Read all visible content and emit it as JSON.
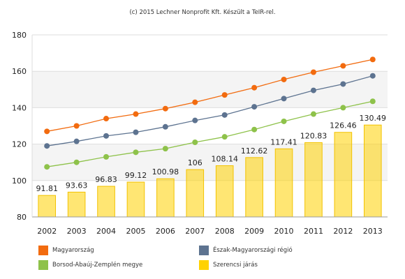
{
  "credit": "(c) 2015 Lechner Nonprofit Kft. Készült a TeIR-rel.",
  "chart_data": {
    "type": "bar",
    "categories": [
      "2002",
      "2003",
      "2004",
      "2005",
      "2006",
      "2007",
      "2008",
      "2009",
      "2010",
      "2011",
      "2012",
      "2013"
    ],
    "ylim": [
      80,
      180
    ],
    "yticks": [
      80,
      100,
      120,
      140,
      160,
      180
    ],
    "grid": true,
    "legend_position": "bottom",
    "bar_series": {
      "name": "Szerencsi járás",
      "color": "#ffd200",
      "values": [
        91.81,
        93.63,
        96.83,
        99.12,
        100.98,
        106,
        108.14,
        112.62,
        117.41,
        120.83,
        126.46,
        130.49
      ],
      "labels": [
        "91.81",
        "93.63",
        "96.83",
        "99.12",
        "100.98",
        "106",
        "108.14",
        "112.62",
        "117.41",
        "120.83",
        "126.46",
        "130.49"
      ]
    },
    "line_series": [
      {
        "name": "Magyarország",
        "color": "#f26b0f",
        "values": [
          127,
          130,
          134,
          136.5,
          139.5,
          143,
          147,
          151,
          155.5,
          159.5,
          163,
          166.5
        ]
      },
      {
        "name": "Észak-Magyarországi régió",
        "color": "#5d7390",
        "values": [
          119,
          121.5,
          124.5,
          126.5,
          129.5,
          133,
          136,
          140.5,
          145,
          149.5,
          153,
          157.5
        ]
      },
      {
        "name": "Borsod-Abaúj-Zemplén megye",
        "color": "#8ec24a",
        "values": [
          107.5,
          110,
          113,
          115.5,
          117.5,
          121,
          124,
          128,
          132.5,
          136.5,
          140,
          143.5
        ]
      }
    ]
  },
  "legend": [
    {
      "label": "Magyarország",
      "color": "#f26b0f"
    },
    {
      "label": "Észak-Magyarországi régió",
      "color": "#5d7390"
    },
    {
      "label": "Borsod-Abaúj-Zemplén megye",
      "color": "#8ec24a"
    },
    {
      "label": "Szerencsi járás",
      "color": "#ffd200"
    }
  ]
}
